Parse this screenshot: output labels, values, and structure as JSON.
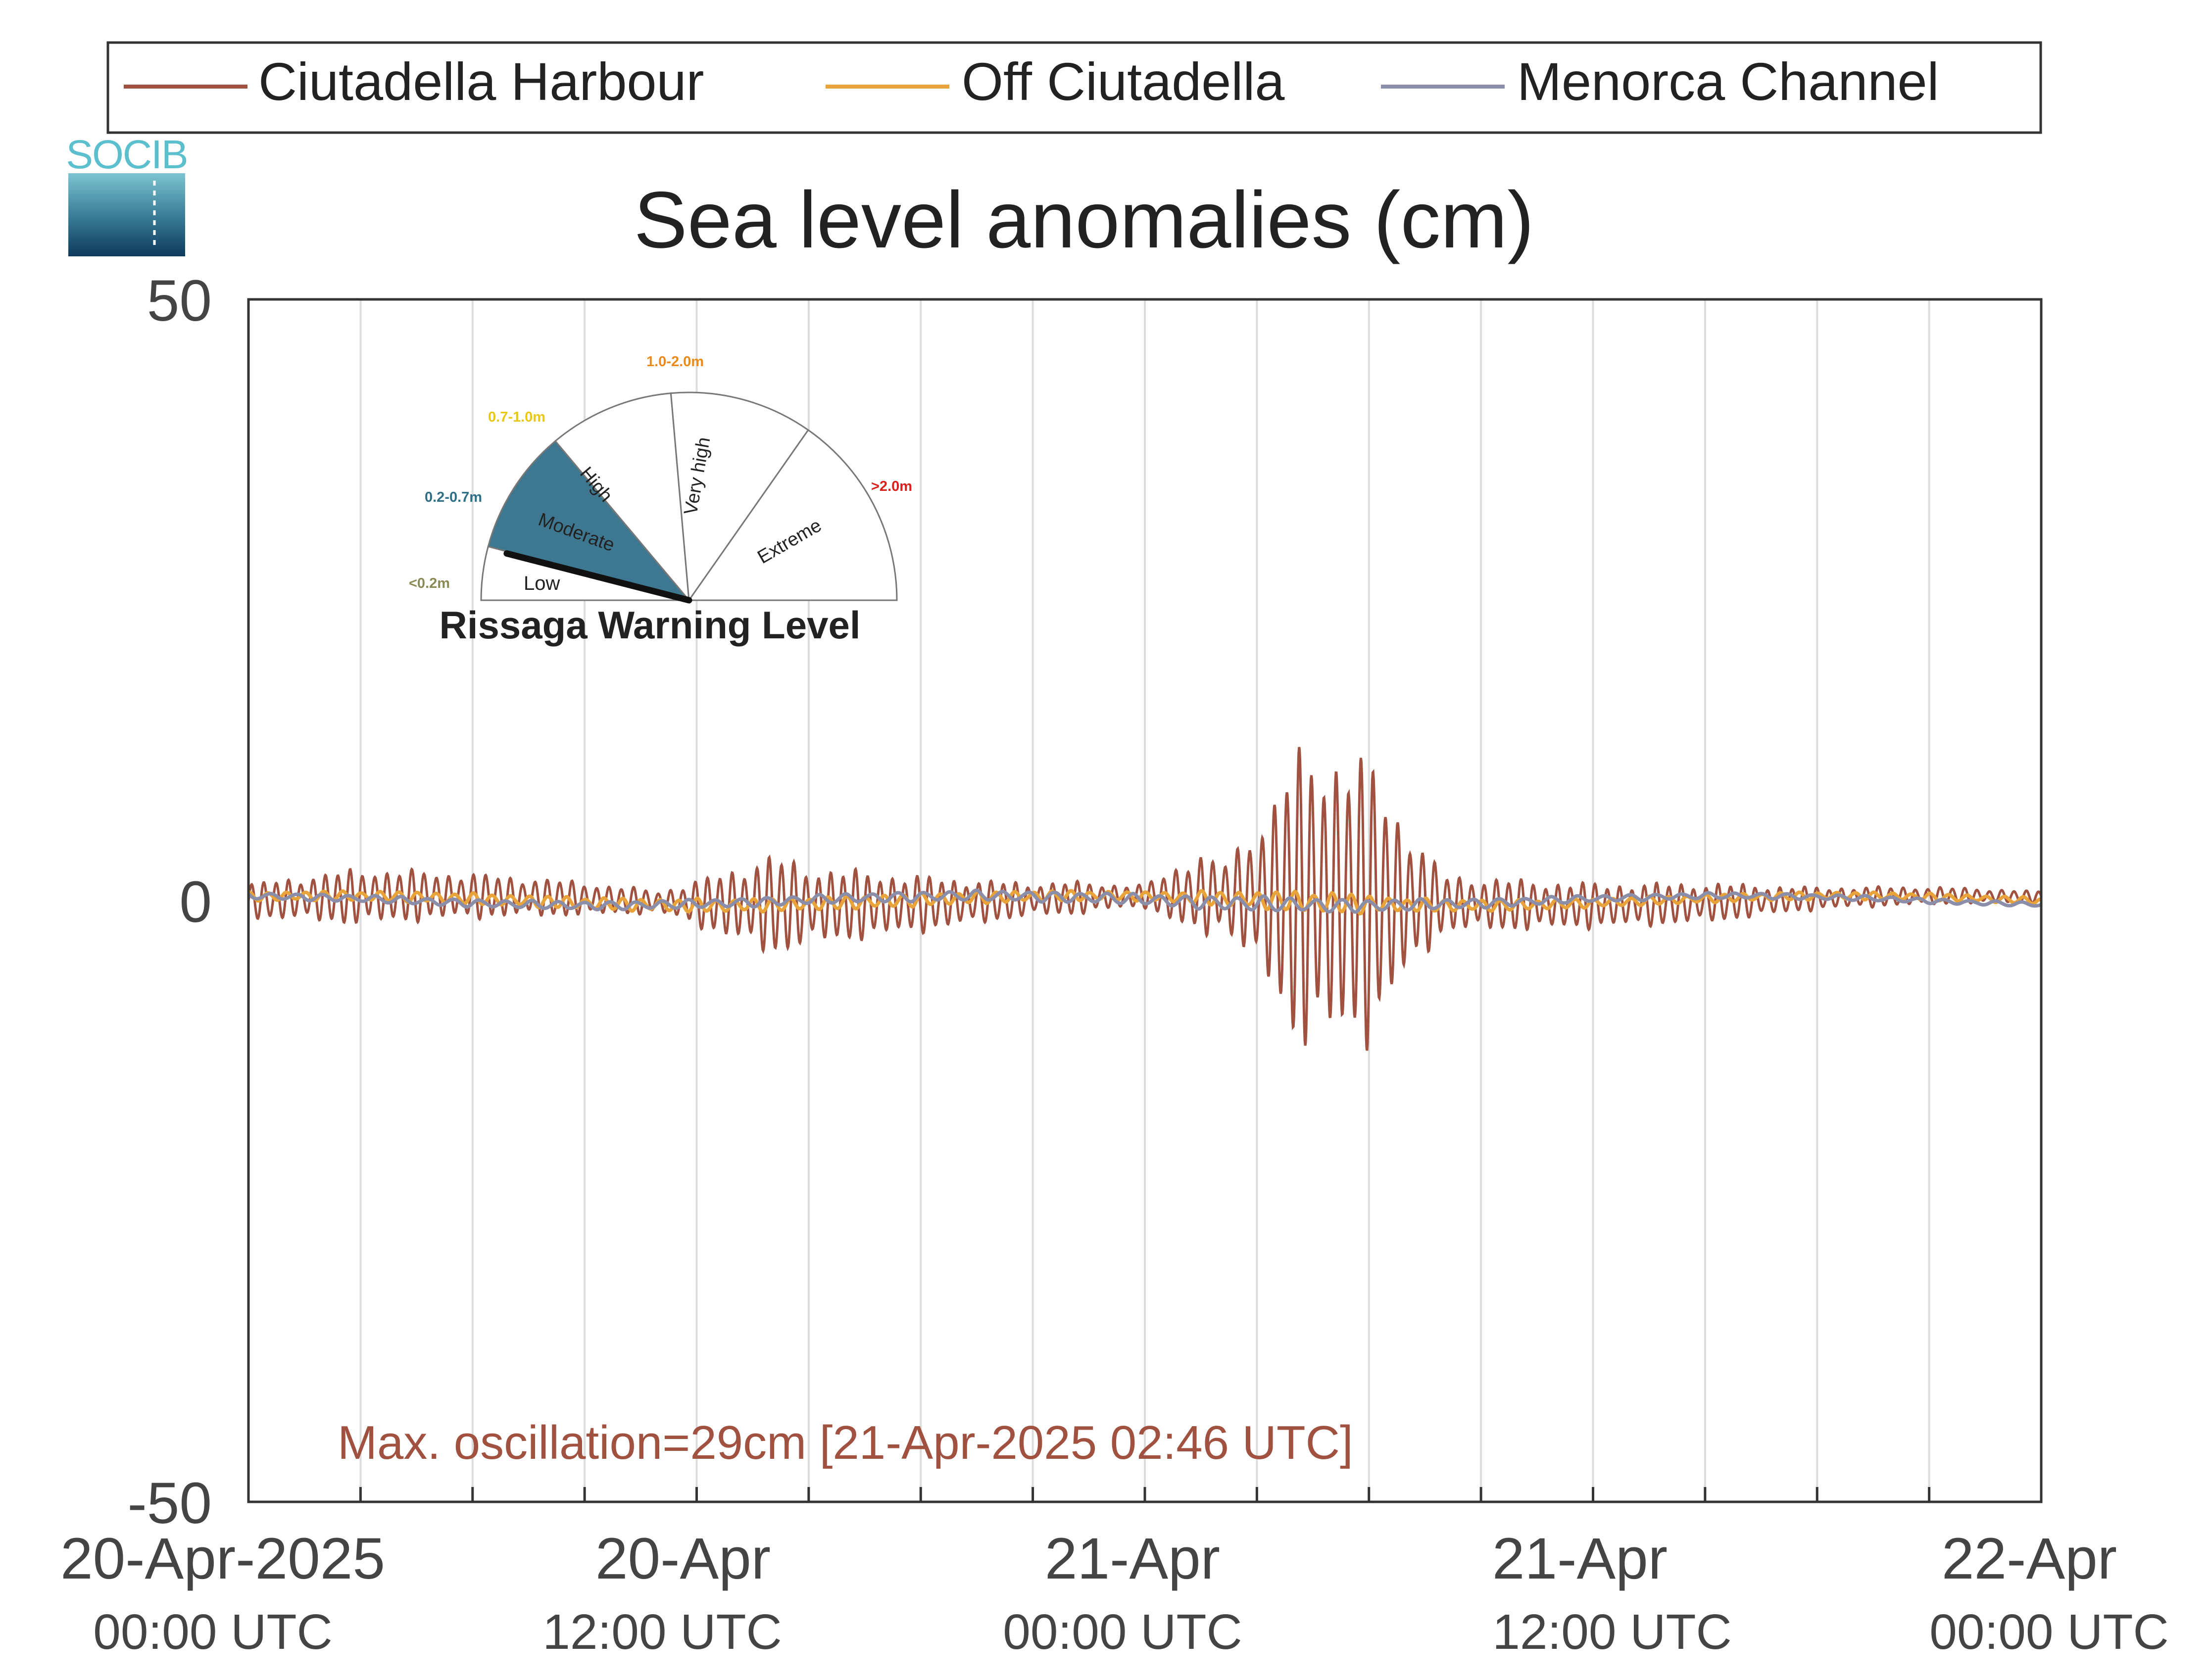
{
  "chart_data": {
    "type": "line",
    "title": "Sea level anomalies (cm)",
    "xlabel": "",
    "ylabel": "",
    "ylim": [
      -50,
      50
    ],
    "yticks": [
      -50,
      0,
      50
    ],
    "y_tick_labels": [
      "-50",
      "0",
      "50"
    ],
    "x_range_hours": [
      0,
      48
    ],
    "x_ticks_hours": [
      0,
      12,
      24,
      36,
      48
    ],
    "x_tick_labels": [
      {
        "date": "20-Apr-2025",
        "time": "00:00 UTC"
      },
      {
        "date": "20-Apr",
        "time": "12:00 UTC"
      },
      {
        "date": "21-Apr",
        "time": "00:00 UTC"
      },
      {
        "date": "21-Apr",
        "time": "12:00 UTC"
      },
      {
        "date": "22-Apr",
        "time": "00:00 UTC"
      }
    ],
    "grid": "vertical lines every 3 hours",
    "legend_position": "top",
    "series": [
      {
        "name": "Ciutadella Harbour",
        "color": "#a0513f",
        "envelope_hours": [
          0,
          3,
          6,
          9,
          11,
          12,
          14,
          15,
          18,
          20,
          21,
          22,
          23,
          24,
          24.5,
          25.5,
          26,
          26.5,
          27.5,
          28,
          29,
          30,
          31,
          32,
          36,
          39,
          42,
          45,
          48
        ],
        "envelope_amplitude_cm": [
          1.5,
          2.5,
          2.0,
          1.5,
          1.0,
          2.0,
          4.5,
          3.5,
          2.5,
          1.8,
          1.5,
          1.5,
          1.2,
          1.0,
          2.0,
          4.0,
          2.5,
          4.5,
          9.0,
          13.0,
          13.5,
          12.5,
          7.0,
          2.5,
          2.0,
          1.8,
          1.0,
          0.8,
          0.5
        ],
        "extremes_cm": {
          "max": 13.8,
          "min": -15
        }
      },
      {
        "name": "Off Ciutadella",
        "color": "#e8a33a",
        "envelope_hours": [
          0,
          12,
          18,
          24,
          27,
          29,
          31,
          36,
          48
        ],
        "envelope_amplitude_cm": [
          0.4,
          0.6,
          0.6,
          0.4,
          0.8,
          1.0,
          0.6,
          0.4,
          0.3
        ]
      },
      {
        "name": "Menorca Channel",
        "color": "#8a8ea8",
        "envelope_hours": [
          0,
          12,
          24,
          27,
          36,
          48
        ],
        "envelope_amplitude_cm": [
          0.3,
          0.4,
          0.5,
          0.7,
          0.3,
          0.2
        ]
      }
    ],
    "annotation": "Max. oscillation=29cm [21-Apr-2025 02:46 UTC]",
    "annotation_color": "#a0513f"
  },
  "logo": {
    "text": "SOCIB",
    "color": "#5bbfce"
  },
  "gauge": {
    "title": "Rissaga Warning Level",
    "current_level": "Moderate",
    "needle_fraction": 0.08,
    "segments": [
      {
        "label": "Low",
        "range": "<0.2m",
        "range_color": "#8a8a55",
        "fill": "#ffffff"
      },
      {
        "label": "Moderate",
        "range": "0.2-0.7m",
        "range_color": "#2f6f86",
        "fill": "#3d7890"
      },
      {
        "label": "High",
        "range": "0.7-1.0m",
        "range_color": "#e8c815",
        "fill": "#ffffff"
      },
      {
        "label": "Very high",
        "range": "1.0-2.0m",
        "range_color": "#ea8a1a",
        "fill": "#ffffff"
      },
      {
        "label": "Extreme",
        "range": ">2.0m",
        "range_color": "#d8201c",
        "fill": "#ffffff"
      }
    ]
  }
}
